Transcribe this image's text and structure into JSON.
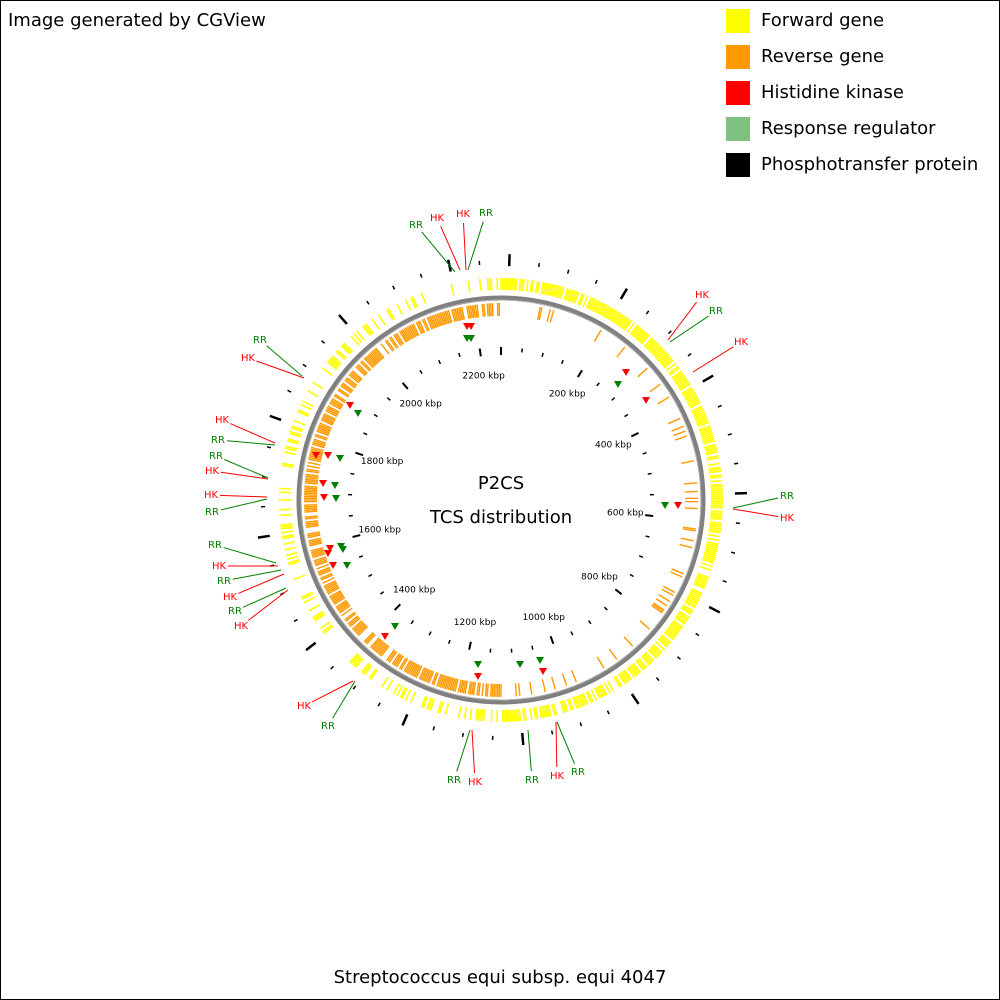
{
  "header": {
    "credit": "Image generated by CGView"
  },
  "legend": [
    {
      "label": "Forward gene",
      "color": "#ffff00"
    },
    {
      "label": "Reverse gene",
      "color": "#ff9900"
    },
    {
      "label": "Histidine kinase",
      "color": "#ff0000"
    },
    {
      "label": "Response regulator",
      "color": "#80c080"
    },
    {
      "label": "Phosphotransfer protein",
      "color": "#000000"
    }
  ],
  "center": {
    "title": "P2CS",
    "subtitle": "TCS distribution"
  },
  "scale_labels": [
    "200 kbp",
    "400 kbp",
    "600 kbp",
    "800 kbp",
    "1000 kbp",
    "1200 kbp",
    "1400 kbp",
    "1600 kbp",
    "1800 kbp",
    "2000 kbp",
    "2200 kbp"
  ],
  "features": [
    {
      "label": "RR",
      "color": "#008000"
    },
    {
      "label": "HK",
      "color": "#ff0000"
    },
    {
      "label": "HK",
      "color": "#ff0000"
    },
    {
      "label": "RR",
      "color": "#008000"
    },
    {
      "label": "HK",
      "color": "#ff0000"
    },
    {
      "label": "RR",
      "color": "#008000"
    },
    {
      "label": "HK",
      "color": "#ff0000"
    },
    {
      "label": "RR",
      "color": "#008000"
    },
    {
      "label": "HK",
      "color": "#ff0000"
    },
    {
      "label": "RR",
      "color": "#008000"
    },
    {
      "label": "HK",
      "color": "#ff0000"
    },
    {
      "label": "HK",
      "color": "#ff0000"
    },
    {
      "label": "RR",
      "color": "#008000"
    },
    {
      "label": "RR",
      "color": "#008000"
    },
    {
      "label": "HK",
      "color": "#ff0000"
    },
    {
      "label": "HK",
      "color": "#ff0000"
    },
    {
      "label": "RR",
      "color": "#008000"
    },
    {
      "label": "RR",
      "color": "#008000"
    },
    {
      "label": "HK",
      "color": "#ff0000"
    },
    {
      "label": "RR",
      "color": "#008000"
    },
    {
      "label": "HK",
      "color": "#ff0000"
    },
    {
      "label": "RR",
      "color": "#008000"
    },
    {
      "label": "HK",
      "color": "#ff0000"
    },
    {
      "label": "HK",
      "color": "#ff0000"
    },
    {
      "label": "RR",
      "color": "#008000"
    },
    {
      "label": "RR",
      "color": "#008000"
    },
    {
      "label": "HK",
      "color": "#ff0000"
    },
    {
      "label": "RR",
      "color": "#008000"
    },
    {
      "label": "HK",
      "color": "#ff0000"
    },
    {
      "label": "RR",
      "color": "#008000"
    }
  ],
  "footer": {
    "organism": "Streptococcus equi subsp. equi 4047"
  }
}
